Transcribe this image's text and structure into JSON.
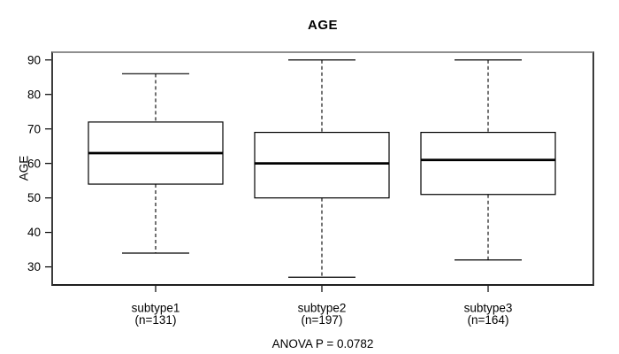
{
  "chart_data": {
    "type": "boxplot",
    "title": "AGE",
    "ylabel": "AGE",
    "xlabel": "",
    "ylim": [
      24.5,
      92.5
    ],
    "yticks": [
      30,
      40,
      50,
      60,
      70,
      80,
      90
    ],
    "grid": false,
    "annotation": "ANOVA P = 0.0782",
    "groups": [
      {
        "label": "subtype1",
        "sublabel": "(n=131)",
        "n": 131,
        "lower_whisker": 34,
        "q1": 54,
        "median": 63,
        "q3": 72,
        "upper_whisker": 86
      },
      {
        "label": "subtype2",
        "sublabel": "(n=197)",
        "n": 197,
        "lower_whisker": 27,
        "q1": 50,
        "median": 60,
        "q3": 69,
        "upper_whisker": 90
      },
      {
        "label": "subtype3",
        "sublabel": "(n=164)",
        "n": 164,
        "lower_whisker": 32,
        "q1": 51,
        "median": 61,
        "q3": 69,
        "upper_whisker": 90
      }
    ],
    "colors": {
      "line": "#000000",
      "box_fill": "#ffffff",
      "frame_top": "#8f8f8f",
      "frame_side": "#3c3c3c",
      "background": "#ffffff"
    }
  }
}
